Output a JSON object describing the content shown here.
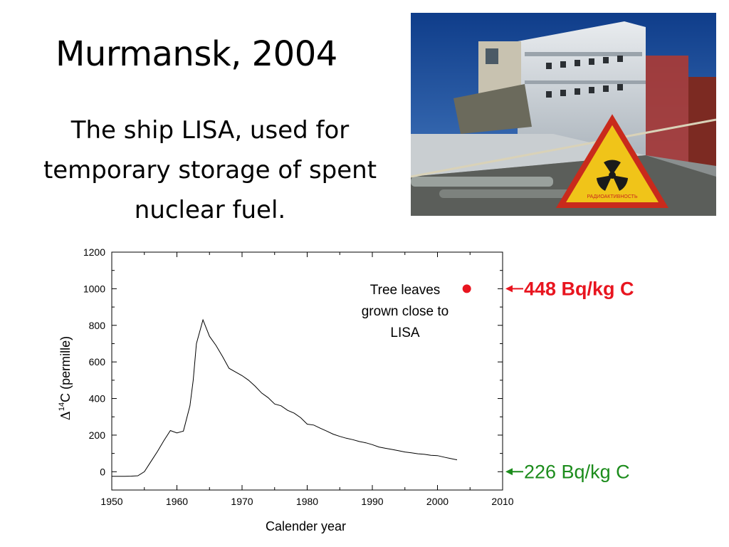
{
  "slide": {
    "title": "Murmansk, 2004",
    "body": "The ship LISA, used for temporary storage of spent nuclear fuel."
  },
  "photo": {
    "sign_text": "РАДИОАКТИВНОСТЬ"
  },
  "chart_data": {
    "type": "line",
    "xlabel": "Calender year",
    "ylabel_prefix": "Δ",
    "ylabel_superscript": "14",
    "ylabel_main": "C (permille)",
    "xlim": [
      1950,
      2010
    ],
    "ylim": [
      -100,
      1200
    ],
    "x_ticks": [
      "1950",
      "1960",
      "1970",
      "1980",
      "1990",
      "2000",
      "2010"
    ],
    "y_ticks": [
      "0",
      "200",
      "400",
      "600",
      "800",
      "1000",
      "1200"
    ],
    "grid": false,
    "series": [
      {
        "color": "#000000",
        "x": [
          1950,
          1951,
          1952,
          1953,
          1954,
          1955,
          1956,
          1957,
          1958,
          1959,
          1960,
          1961,
          1962,
          1962.5,
          1963,
          1964,
          1965,
          1966,
          1967,
          1968,
          1969,
          1970,
          1971,
          1972,
          1973,
          1974,
          1975,
          1976,
          1977,
          1978,
          1979,
          1980,
          1981,
          1982,
          1983,
          1984,
          1985,
          1986,
          1987,
          1988,
          1989,
          1990,
          1991,
          1992,
          1993,
          1994,
          1995,
          1996,
          1997,
          1998,
          1999,
          2000,
          2001,
          2002,
          2003
        ],
        "y": [
          -25,
          -25,
          -25,
          -24,
          -22,
          0,
          55,
          110,
          170,
          225,
          212,
          222,
          360,
          500,
          700,
          830,
          740,
          690,
          630,
          565,
          545,
          525,
          500,
          468,
          430,
          405,
          370,
          360,
          335,
          320,
          295,
          260,
          255,
          238,
          222,
          205,
          193,
          183,
          175,
          165,
          158,
          148,
          135,
          128,
          122,
          115,
          108,
          103,
          98,
          95,
          90,
          88,
          80,
          72,
          65
        ]
      }
    ],
    "annotation_point": {
      "x": 2004.5,
      "y": 1000,
      "color": "#e8151f"
    },
    "annotation_text_lines": [
      "Tree leaves",
      "grown close to",
      "LISA"
    ],
    "right_label_top": {
      "text": "448 Bq/kg C",
      "value": 1000,
      "color": "#e8151f"
    },
    "right_label_bottom": {
      "text": "226 Bq/kg C",
      "value": 0,
      "color": "#1c8c1c"
    }
  }
}
